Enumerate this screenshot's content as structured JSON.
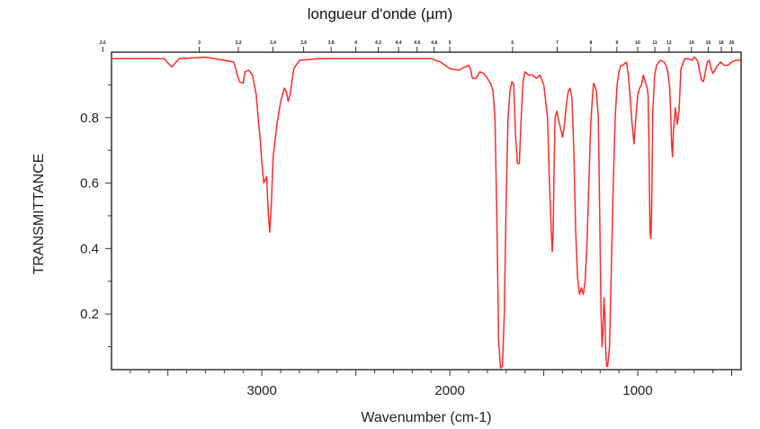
{
  "chart_data": {
    "type": "line",
    "top_axis_label": "longueur d'onde (µm)",
    "xlabel": "Wavenumber (cm-1)",
    "ylabel": "TRANSMITTANCE",
    "xlim": [
      3800,
      450
    ],
    "ylim": [
      0.03,
      1.0
    ],
    "x_ticks": [
      3000,
      2000,
      1000
    ],
    "x_tick_labels": [
      "3000",
      "2000",
      "1000"
    ],
    "y_ticks": [
      0.2,
      0.4,
      0.6,
      0.8
    ],
    "y_tick_labels": [
      "0.2",
      "0.4",
      "0.6",
      "0.8"
    ],
    "top_ticks_um": [
      2.6,
      3,
      3.2,
      3.4,
      3.6,
      3.8,
      4,
      4.2,
      4.4,
      4.6,
      4.8,
      5,
      6,
      7,
      8,
      9,
      10,
      11,
      12,
      14,
      16,
      18,
      20
    ],
    "top_tick_labels": [
      "2.6",
      "3",
      "3.2",
      "3.4",
      "3.6",
      "3.8",
      "4",
      "4.2",
      "4.4",
      "4.6",
      "4.8",
      "5",
      "6",
      "7",
      "8",
      "9",
      "10",
      "11",
      "12",
      "14",
      "16",
      "18",
      "20"
    ],
    "grid": false,
    "line_color": "#ff2a2a",
    "series": [
      {
        "x": [
          3800,
          3600,
          3520,
          3480,
          3440,
          3300,
          3150,
          3120,
          3100,
          3090,
          3070,
          3050,
          3030,
          3020,
          3010,
          3000,
          2990,
          2975,
          2965,
          2958,
          2950,
          2940,
          2920,
          2900,
          2880,
          2870,
          2860,
          2850,
          2830,
          2800,
          2700,
          2500,
          2300,
          2100,
          2050,
          2000,
          1950,
          1920,
          1900,
          1890,
          1880,
          1860,
          1840,
          1820,
          1800,
          1780,
          1770,
          1760,
          1750,
          1740,
          1730,
          1720,
          1710,
          1700,
          1690,
          1680,
          1670,
          1660,
          1650,
          1640,
          1630,
          1620,
          1610,
          1600,
          1580,
          1560,
          1540,
          1520,
          1500,
          1480,
          1470,
          1460,
          1455,
          1450,
          1445,
          1440,
          1430,
          1420,
          1400,
          1390,
          1380,
          1370,
          1360,
          1350,
          1340,
          1330,
          1320,
          1310,
          1300,
          1290,
          1280,
          1270,
          1260,
          1250,
          1240,
          1235,
          1230,
          1220,
          1210,
          1205,
          1200,
          1195,
          1190,
          1185,
          1180,
          1175,
          1170,
          1165,
          1160,
          1150,
          1140,
          1130,
          1120,
          1110,
          1100,
          1090,
          1080,
          1070,
          1060,
          1050,
          1040,
          1030,
          1020,
          1010,
          1000,
          990,
          980,
          970,
          960,
          950,
          945,
          940,
          935,
          930,
          925,
          920,
          910,
          900,
          880,
          860,
          850,
          840,
          830,
          825,
          820,
          815,
          810,
          800,
          790,
          780,
          770,
          750,
          730,
          710,
          700,
          690,
          680,
          670,
          660,
          650,
          640,
          630,
          620,
          610,
          600,
          580,
          560,
          540,
          520,
          500,
          480,
          460,
          450
        ],
        "y": [
          0.98,
          0.98,
          0.98,
          0.955,
          0.98,
          0.985,
          0.97,
          0.91,
          0.905,
          0.94,
          0.945,
          0.93,
          0.87,
          0.8,
          0.74,
          0.66,
          0.6,
          0.62,
          0.5,
          0.45,
          0.53,
          0.68,
          0.78,
          0.85,
          0.89,
          0.88,
          0.85,
          0.87,
          0.95,
          0.975,
          0.98,
          0.98,
          0.98,
          0.98,
          0.97,
          0.95,
          0.945,
          0.955,
          0.96,
          0.95,
          0.92,
          0.92,
          0.94,
          0.935,
          0.92,
          0.9,
          0.88,
          0.8,
          0.5,
          0.12,
          0.035,
          0.04,
          0.2,
          0.55,
          0.8,
          0.88,
          0.91,
          0.9,
          0.74,
          0.66,
          0.66,
          0.8,
          0.91,
          0.94,
          0.93,
          0.93,
          0.92,
          0.93,
          0.9,
          0.8,
          0.6,
          0.45,
          0.39,
          0.45,
          0.65,
          0.8,
          0.82,
          0.79,
          0.74,
          0.78,
          0.84,
          0.88,
          0.89,
          0.86,
          0.7,
          0.45,
          0.31,
          0.26,
          0.28,
          0.26,
          0.3,
          0.42,
          0.6,
          0.78,
          0.87,
          0.905,
          0.9,
          0.88,
          0.8,
          0.62,
          0.4,
          0.2,
          0.1,
          0.14,
          0.25,
          0.2,
          0.08,
          0.04,
          0.04,
          0.1,
          0.35,
          0.6,
          0.8,
          0.9,
          0.94,
          0.96,
          0.96,
          0.965,
          0.97,
          0.93,
          0.86,
          0.78,
          0.72,
          0.8,
          0.87,
          0.89,
          0.9,
          0.93,
          0.91,
          0.89,
          0.87,
          0.7,
          0.45,
          0.43,
          0.55,
          0.82,
          0.93,
          0.96,
          0.975,
          0.97,
          0.96,
          0.94,
          0.89,
          0.82,
          0.72,
          0.68,
          0.76,
          0.83,
          0.78,
          0.82,
          0.95,
          0.98,
          0.98,
          0.975,
          0.985,
          0.98,
          0.97,
          0.94,
          0.915,
          0.91,
          0.94,
          0.97,
          0.975,
          0.95,
          0.935,
          0.955,
          0.97,
          0.96,
          0.96,
          0.97,
          0.975,
          0.975,
          0.978
        ]
      }
    ]
  }
}
